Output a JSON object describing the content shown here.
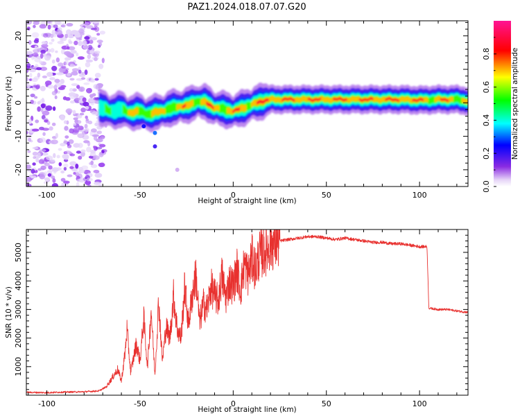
{
  "title": "PAZ1.2024.018.07.07.G20",
  "chart_data": [
    {
      "type": "heatmap",
      "title": "PAZ1.2024.018.07.07.G20",
      "xlabel": "Height of straight line (km)",
      "ylabel": "Frequency (Hz)",
      "xlim": [
        -111,
        126
      ],
      "ylim": [
        -25,
        24.5
      ],
      "xticks": [
        -100,
        -50,
        0,
        50,
        100
      ],
      "yticks": [
        -20,
        -10,
        0,
        10,
        20
      ],
      "colorbar": {
        "label": "Normalized spectral amplitude",
        "range": [
          0,
          1
        ],
        "ticks": [
          0.0,
          0.2,
          0.4,
          0.6,
          0.8
        ],
        "tick_labels": [
          "0.0",
          "0.2",
          "0.4",
          "0.6",
          "0.8"
        ],
        "colormap": [
          "#ffffff",
          "#8a2be2",
          "#0000ff",
          "#00ffff",
          "#00ff00",
          "#ffff00",
          "#ff0000",
          "#ff1493"
        ]
      },
      "ridge": {
        "x": [
          -72,
          -65,
          -60,
          -55,
          -50,
          -45,
          -40,
          -35,
          -30,
          -25,
          -20,
          -15,
          -10,
          -5,
          0,
          5,
          10,
          15,
          20,
          30,
          40,
          50,
          60,
          70,
          80,
          90,
          100,
          110,
          120,
          126
        ],
        "y": [
          -1.5,
          -2.5,
          -2.0,
          -3.0,
          -2.5,
          -3.5,
          -2.5,
          -2.0,
          -1.0,
          -1.0,
          0.5,
          0.0,
          -1.5,
          -2.0,
          -2.5,
          -1.5,
          -0.5,
          0.5,
          1.0,
          1.0,
          1.0,
          1.0,
          1.0,
          1.0,
          1.0,
          1.0,
          0.8,
          1.0,
          1.0,
          0.5
        ],
        "amplitude": [
          0.5,
          0.6,
          0.7,
          0.75,
          0.8,
          0.8,
          0.8,
          0.85,
          0.85,
          0.85,
          0.9,
          0.9,
          0.9,
          0.9,
          0.9,
          0.9,
          0.95,
          0.95,
          1.0,
          1.0,
          1.0,
          1.0,
          1.0,
          1.0,
          1.0,
          1.0,
          0.95,
          0.9,
          0.9,
          0.85
        ]
      },
      "noise_region": {
        "x_range": [
          -111,
          -70
        ],
        "amplitude": 0.15
      }
    },
    {
      "type": "line",
      "xlabel": "Height of straight line (km)",
      "ylabel": "SNR (10 * v/v)",
      "xlim": [
        -111,
        126
      ],
      "ylim": [
        0,
        5800
      ],
      "xticks": [
        -100,
        -50,
        0,
        50,
        100
      ],
      "yticks": [
        1000,
        2000,
        3000,
        4000,
        5000
      ],
      "series": [
        {
          "color": "#e8312f",
          "x": [
            -111,
            -100,
            -90,
            -80,
            -72,
            -68,
            -65,
            -62,
            -60,
            -58,
            -57,
            -55,
            -52,
            -50,
            -48,
            -46,
            -44,
            -42,
            -40,
            -38,
            -36,
            -34,
            -32,
            -30,
            -28,
            -26,
            -24,
            -22,
            -20,
            -18,
            -16,
            -14,
            -12,
            -10,
            -8,
            -6,
            -4,
            -2,
            0,
            2,
            4,
            6,
            8,
            10,
            12,
            14,
            16,
            18,
            20,
            22,
            25,
            30,
            35,
            40,
            45,
            50,
            55,
            60,
            65,
            70,
            75,
            80,
            85,
            90,
            95,
            100,
            104,
            105,
            110,
            115,
            120,
            126
          ],
          "y": [
            100,
            90,
            110,
            120,
            150,
            300,
            600,
            900,
            500,
            1500,
            2300,
            800,
            1800,
            1200,
            2700,
            1000,
            3000,
            700,
            3300,
            1200,
            2400,
            2000,
            3500,
            2300,
            2000,
            3800,
            2500,
            3500,
            4200,
            2500,
            3200,
            3000,
            3800,
            3500,
            3300,
            4200,
            3400,
            4000,
            3800,
            4400,
            3700,
            4600,
            4200,
            4800,
            4400,
            4900,
            5000,
            5100,
            5300,
            5300,
            5400,
            5450,
            5500,
            5550,
            5550,
            5500,
            5450,
            5500,
            5450,
            5400,
            5350,
            5350,
            5300,
            5300,
            5250,
            5200,
            5200,
            3050,
            3000,
            3000,
            2950,
            2900
          ]
        }
      ]
    }
  ]
}
